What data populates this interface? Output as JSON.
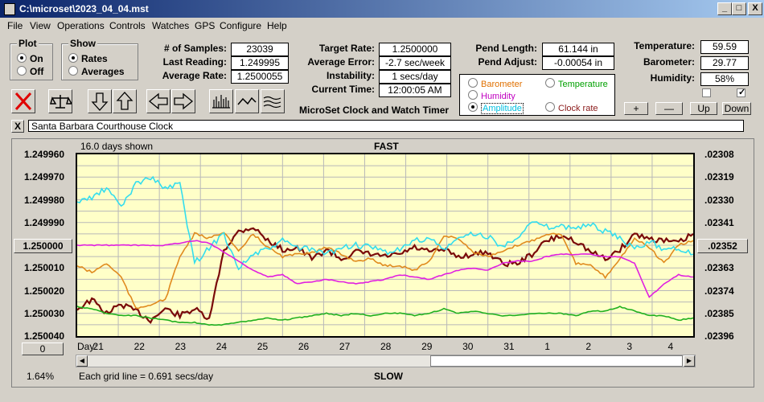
{
  "window": {
    "title": "C:\\microset\\2023_04_04.mst"
  },
  "titlebar_buttons": {
    "minimize": "_",
    "maximize": "□",
    "close": "X"
  },
  "menu": [
    "File",
    "View",
    "Operations",
    "Controls",
    "Watches",
    "GPS",
    "Configure",
    "Help"
  ],
  "plot_group": {
    "title": "Plot",
    "options": [
      "On",
      "Off"
    ],
    "selected": "On"
  },
  "show_group": {
    "title": "Show",
    "options": [
      "Rates",
      "Averages"
    ],
    "selected": "Rates"
  },
  "stats": {
    "samples_label": "# of Samples:",
    "samples": "23039",
    "last_label": "Last Reading:",
    "last": "1.249995",
    "avg_label": "Average Rate:",
    "avg": "1.2500055"
  },
  "rates": {
    "target_label": "Target Rate:",
    "target": "1.2500000",
    "error_label": "Average Error:",
    "error": "-2.7 sec/week",
    "instability_label": "Instability:",
    "instability": "1 secs/day",
    "time_label": "Current Time:",
    "time": "12:00:05 AM"
  },
  "app_title": "MicroSet Clock and Watch Timer",
  "pend": {
    "length_label": "Pend Length:",
    "length": "61.144 in",
    "adjust_label": "Pend Adjust:",
    "adjust": "-0.00054 in"
  },
  "env": {
    "temp_label": "Temperature:",
    "temp": "59.59",
    "baro_label": "Barometer:",
    "baro": "29.77",
    "hum_label": "Humidity:",
    "hum": "58%",
    "checkbox1": false,
    "checkbox2": true
  },
  "overlay_options": [
    {
      "label": "Barometer",
      "color": "#e07000",
      "selected": false
    },
    {
      "label": "Temperature",
      "color": "#00a000",
      "selected": false
    },
    {
      "label": "Humidity",
      "color": "#c000c0",
      "selected": false
    },
    {
      "label": "Amplitude",
      "color": "#00c0e0",
      "selected": true
    },
    {
      "label": "Clock rate",
      "color": "#8b1a1a",
      "selected": false
    }
  ],
  "small_buttons": {
    "plus": "+",
    "minus": "—",
    "up": "Up",
    "down": "Down"
  },
  "toolbar_icons": [
    "cancel-icon",
    "balance-icon",
    "arrow-down-icon",
    "arrow-up-icon",
    "arrow-left-icon",
    "arrow-right-icon",
    "bars-icon",
    "wave-icon",
    "waves-icon"
  ],
  "clock_name": {
    "close": "X",
    "value": "Santa Barbara Courthouse Clock"
  },
  "chart_header": {
    "days_shown": "16.0 days shown",
    "fast": "FAST",
    "slow": "SLOW"
  },
  "chart_footer": {
    "percent": "1.64%",
    "grid_note": "Each grid line = 0.691 secs/day",
    "center_button": "1.250000",
    "right_button": ".02352",
    "zero_button": "0",
    "day_label": "Day:"
  },
  "chart_data": {
    "type": "line",
    "x": {
      "ticks": [
        "21",
        "22",
        "23",
        "24",
        "25",
        "26",
        "27",
        "28",
        "29",
        "30",
        "31",
        "1",
        "2",
        "3",
        "4"
      ]
    },
    "y_left": {
      "ticks": [
        "1.249960",
        "1.249970",
        "1.249980",
        "1.249990",
        "1.250000",
        "1.250010",
        "1.250020",
        "1.250030",
        "1.250040"
      ],
      "range": [
        1.24996,
        1.25004
      ]
    },
    "y_right": {
      "ticks": [
        ".02308",
        ".02319",
        ".02330",
        ".02341",
        ".02352",
        ".02363",
        ".02374",
        ".02385",
        ".02396"
      ],
      "range": [
        0.02308,
        0.02396
      ]
    },
    "grid": true,
    "series": [
      {
        "name": "Clock rate",
        "color": "#7a0a0a",
        "values": [
          1.250028,
          1.250024,
          1.25003,
          1.250026,
          1.250029,
          1.250033,
          1.250028,
          1.250031,
          1.250028,
          1.250033,
          1.250002,
          1.249994,
          1.249992,
          1.249998,
          1.250002,
          1.250001,
          1.250006,
          1.250002,
          1.250006,
          1.250003,
          1.250004,
          1.250005,
          1.250004,
          1.250001,
          1.250003,
          1.250002,
          1.250005,
          1.250004,
          1.250003,
          1.250008,
          1.250008,
          1.250004,
          1.249998,
          1.249996,
          1.249998,
          1.250003,
          1.250006,
          1.250002,
          1.249995,
          1.249997,
          1.249998,
          1.249999,
          1.249995
        ]
      },
      {
        "name": "Barometer",
        "color": "#e08a1e",
        "values": [
          1.250009,
          1.250012,
          1.250008,
          1.250014,
          1.250028,
          1.250026,
          1.250024,
          1.250005,
          1.249995,
          1.249997,
          1.249994,
          1.250003,
          1.249995,
          1.250001,
          1.250005,
          1.250004,
          1.250003,
          1.250001,
          1.250004,
          1.250007,
          1.250006,
          1.250009,
          1.250009,
          1.250011,
          1.250007,
          1.249996,
          1.249997,
          1.250003,
          1.250005,
          1.250003,
          1.25,
          1.249998,
          1.249995,
          1.249995,
          1.250008,
          1.250009,
          1.250014,
          1.250006,
          1.249997,
          1.250001,
          1.250008,
          1.25,
          1.249998
        ]
      },
      {
        "name": "Amplitude",
        "color": "#33ddee",
        "values": [
          1.249981,
          1.249979,
          1.249975,
          1.249983,
          1.249973,
          1.24997,
          1.249975,
          1.249973,
          1.250008,
          1.250001,
          1.249995,
          1.25001,
          1.250004,
          1.250002,
          1.249998,
          1.250001,
          1.250002,
          1.250004,
          1.250001,
          1.25,
          1.250001,
          1.250003,
          1.250002,
          1.249998,
          1.249997,
          1.250002,
          1.249997,
          1.249995,
          1.249996,
          1.250001,
          1.249996,
          1.24999,
          1.249992,
          1.249992,
          1.249992,
          1.249991,
          1.249994,
          1.249997,
          1.250002,
          1.249998,
          1.250002,
          1.250001,
          1.250004
        ]
      },
      {
        "name": "Humidity",
        "color": "#e020e0",
        "values": [
          1.25,
          1.25,
          1.25,
          1.25,
          1.25,
          1.25,
          1.25,
          1.249999,
          1.249998,
          1.249999,
          1.250003,
          1.250007,
          1.250011,
          1.250014,
          1.250013,
          1.250017,
          1.250016,
          1.250015,
          1.250016,
          1.250017,
          1.250016,
          1.250015,
          1.250013,
          1.250014,
          1.250015,
          1.250013,
          1.250011,
          1.25001,
          1.250011,
          1.250008,
          1.250007,
          1.250007,
          1.250005,
          1.250004,
          1.250004,
          1.250004,
          1.250005,
          1.250005,
          1.250008,
          1.250023,
          1.250017,
          1.250013,
          1.250014
        ]
      },
      {
        "name": "Temperature",
        "color": "#20b020",
        "values": [
          1.250027,
          1.250028,
          1.25003,
          1.250031,
          1.250031,
          1.250032,
          1.250033,
          1.250034,
          1.250034,
          1.250035,
          1.250035,
          1.250034,
          1.250033,
          1.250032,
          1.250033,
          1.250032,
          1.250031,
          1.25003,
          1.250031,
          1.25003,
          1.250031,
          1.25003,
          1.25003,
          1.250031,
          1.25003,
          1.250028,
          1.25003,
          1.250029,
          1.25003,
          1.250031,
          1.250031,
          1.25003,
          1.25003,
          1.25003,
          1.250031,
          1.250029,
          1.250029,
          1.250027,
          1.250029,
          1.250031,
          1.250031,
          1.250033,
          1.250032
        ]
      }
    ]
  }
}
